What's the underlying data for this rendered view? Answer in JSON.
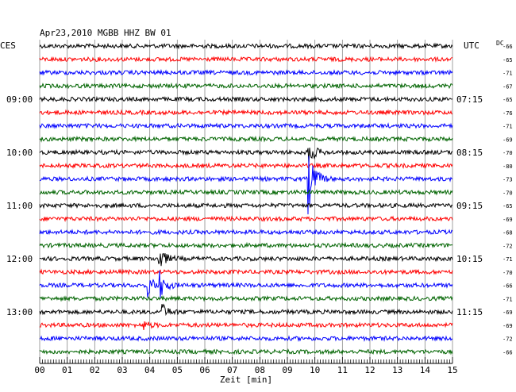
{
  "chart_data": {
    "type": "line",
    "title": "Apr23,2010   MGBB HHZ BW 01",
    "xlabel": "Zeit [min]",
    "xlim": [
      0,
      15
    ],
    "x_ticks": [
      "00",
      "01",
      "02",
      "03",
      "04",
      "05",
      "06",
      "07",
      "08",
      "09",
      "10",
      "11",
      "12",
      "13",
      "14",
      "15"
    ],
    "left_axis_header": "CES",
    "right_axis_header": "UTC",
    "dc_header": "DC",
    "left_hour_labels": [
      {
        "trace": 4,
        "label": "09:00"
      },
      {
        "trace": 8,
        "label": "10:00"
      },
      {
        "trace": 12,
        "label": "11:00"
      },
      {
        "trace": 16,
        "label": "12:00"
      },
      {
        "trace": 20,
        "label": "13:00"
      }
    ],
    "right_hour_labels": [
      {
        "trace": 4,
        "label": "07:15"
      },
      {
        "trace": 8,
        "label": "08:15"
      },
      {
        "trace": 12,
        "label": "09:15"
      },
      {
        "trace": 16,
        "label": "10:15"
      },
      {
        "trace": 20,
        "label": "11:15"
      }
    ],
    "dc_values": [
      "-66",
      "-65",
      "-71",
      "-67",
      "-65",
      "-76",
      "-71",
      "-69",
      "-70",
      "-80",
      "-73",
      "-70",
      "-65",
      "-69",
      "-68",
      "-72",
      "-71",
      "-70",
      "-66",
      "-71",
      "-69",
      "-69",
      "-72",
      "-66"
    ],
    "series_colors": [
      "#000000",
      "#ff0000",
      "#0000ff",
      "#006400"
    ],
    "events": [
      {
        "trace": 8,
        "minute": 9.75,
        "amp": 1.0
      },
      {
        "trace": 10,
        "minute": 9.75,
        "amp": 2.6
      },
      {
        "trace": 16,
        "minute": 4.3,
        "amp": 1.1
      },
      {
        "trace": 18,
        "minute": 3.9,
        "amp": 0.9
      },
      {
        "trace": 18,
        "minute": 4.35,
        "amp": 1.0
      },
      {
        "trace": 20,
        "minute": 4.4,
        "amp": 0.7
      },
      {
        "trace": 21,
        "minute": 3.7,
        "amp": 0.4
      }
    ],
    "grid": true,
    "legend": "none"
  }
}
